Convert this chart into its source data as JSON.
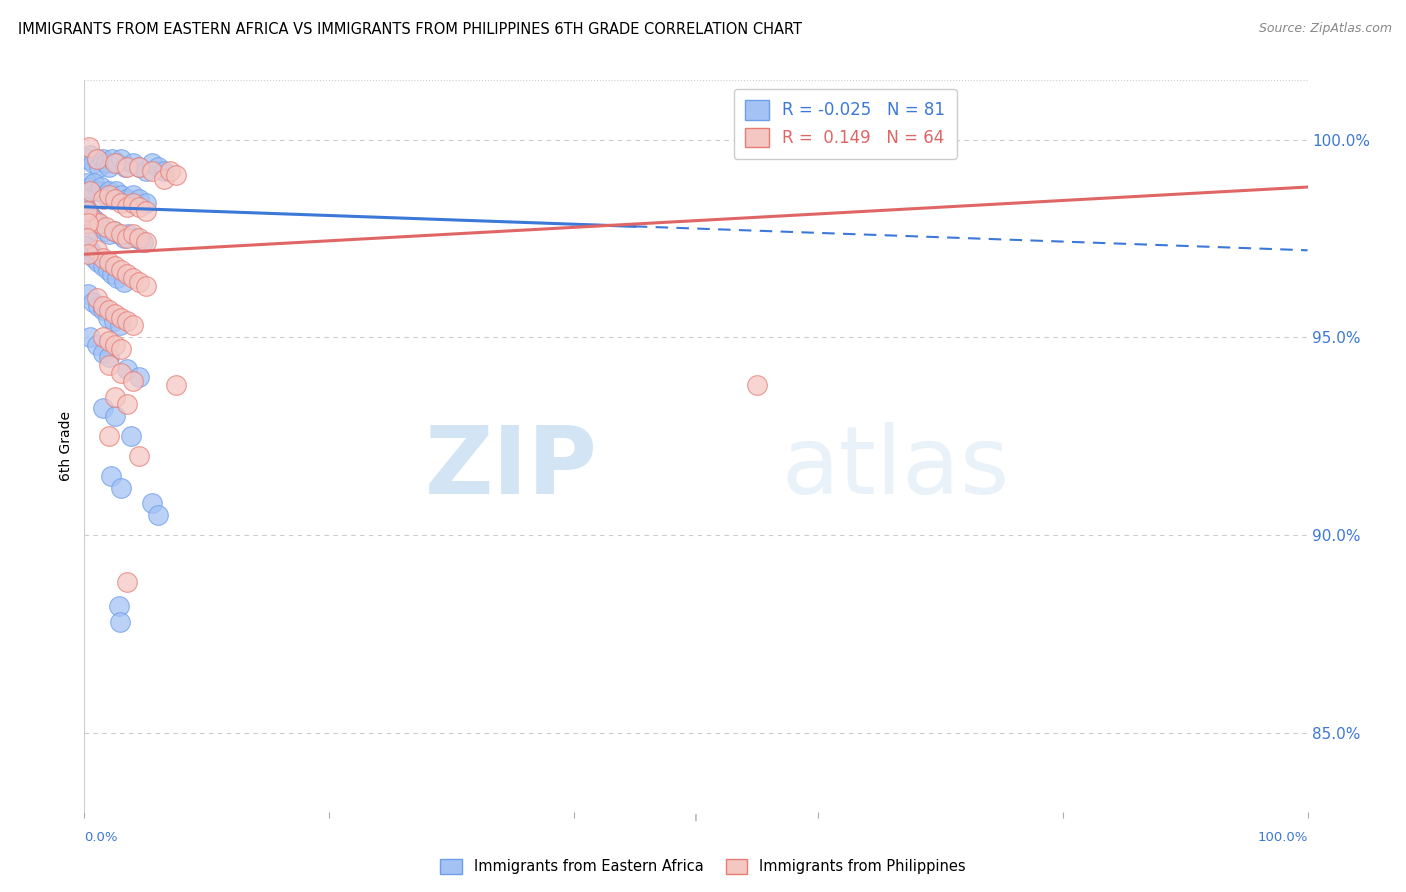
{
  "title": "IMMIGRANTS FROM EASTERN AFRICA VS IMMIGRANTS FROM PHILIPPINES 6TH GRADE CORRELATION CHART",
  "source": "Source: ZipAtlas.com",
  "ylabel": "6th Grade",
  "right_yticks": [
    100.0,
    95.0,
    90.0,
    85.0
  ],
  "xlim": [
    0,
    100
  ],
  "ylim": [
    83.0,
    101.5
  ],
  "watermark_zip": "ZIP",
  "watermark_atlas": "atlas",
  "legend_blue_r": "-0.025",
  "legend_blue_n": "81",
  "legend_pink_r": "0.149",
  "legend_pink_n": "64",
  "blue_color": "#a4c2f4",
  "pink_color": "#f4c7c3",
  "blue_edge_color": "#6d9eeb",
  "pink_edge_color": "#e67c73",
  "blue_line_color": "#3c78d8",
  "pink_line_color": "#e06666",
  "blue_line": [
    0,
    100,
    98.3,
    97.2
  ],
  "pink_line": [
    0,
    100,
    97.1,
    98.8
  ],
  "blue_dash_start_x": 45,
  "grid_color": "#cccccc",
  "bg_color": "#ffffff",
  "blue_scatter": [
    [
      0.3,
      99.5
    ],
    [
      0.5,
      99.6
    ],
    [
      0.7,
      99.4
    ],
    [
      1.0,
      99.5
    ],
    [
      1.2,
      99.3
    ],
    [
      1.5,
      99.5
    ],
    [
      1.8,
      99.4
    ],
    [
      2.0,
      99.3
    ],
    [
      2.3,
      99.5
    ],
    [
      2.7,
      99.4
    ],
    [
      3.0,
      99.5
    ],
    [
      3.3,
      99.3
    ],
    [
      4.0,
      99.4
    ],
    [
      4.5,
      99.3
    ],
    [
      5.0,
      99.2
    ],
    [
      5.5,
      99.4
    ],
    [
      6.0,
      99.3
    ],
    [
      6.5,
      99.2
    ],
    [
      0.2,
      98.9
    ],
    [
      0.5,
      98.8
    ],
    [
      0.8,
      98.9
    ],
    [
      1.1,
      98.7
    ],
    [
      1.4,
      98.8
    ],
    [
      1.7,
      98.6
    ],
    [
      2.0,
      98.7
    ],
    [
      2.3,
      98.5
    ],
    [
      2.6,
      98.7
    ],
    [
      3.0,
      98.6
    ],
    [
      3.5,
      98.5
    ],
    [
      4.0,
      98.6
    ],
    [
      4.5,
      98.5
    ],
    [
      5.0,
      98.4
    ],
    [
      0.1,
      98.3
    ],
    [
      0.3,
      98.2
    ],
    [
      0.5,
      98.1
    ],
    [
      0.8,
      98.0
    ],
    [
      1.1,
      97.9
    ],
    [
      1.4,
      97.8
    ],
    [
      1.7,
      97.7
    ],
    [
      2.0,
      97.6
    ],
    [
      2.4,
      97.7
    ],
    [
      2.8,
      97.6
    ],
    [
      3.2,
      97.5
    ],
    [
      3.6,
      97.6
    ],
    [
      4.2,
      97.5
    ],
    [
      4.8,
      97.4
    ],
    [
      0.2,
      97.3
    ],
    [
      0.5,
      97.2
    ],
    [
      0.8,
      97.0
    ],
    [
      1.1,
      96.9
    ],
    [
      1.5,
      96.8
    ],
    [
      1.9,
      96.7
    ],
    [
      2.3,
      96.6
    ],
    [
      2.7,
      96.5
    ],
    [
      3.2,
      96.4
    ],
    [
      0.3,
      96.1
    ],
    [
      0.7,
      95.9
    ],
    [
      1.1,
      95.8
    ],
    [
      1.5,
      95.7
    ],
    [
      1.9,
      95.5
    ],
    [
      2.4,
      95.4
    ],
    [
      2.9,
      95.3
    ],
    [
      0.5,
      95.0
    ],
    [
      1.0,
      94.8
    ],
    [
      1.5,
      94.6
    ],
    [
      2.0,
      94.5
    ],
    [
      3.5,
      94.2
    ],
    [
      4.5,
      94.0
    ],
    [
      1.5,
      93.2
    ],
    [
      2.5,
      93.0
    ],
    [
      3.8,
      92.5
    ],
    [
      2.2,
      91.5
    ],
    [
      3.0,
      91.2
    ],
    [
      5.5,
      90.8
    ],
    [
      6.0,
      90.5
    ],
    [
      2.8,
      88.2
    ],
    [
      2.9,
      87.8
    ],
    [
      0.05,
      98.5
    ],
    [
      0.08,
      98.3
    ],
    [
      0.06,
      98.1
    ],
    [
      0.07,
      97.9
    ],
    [
      0.04,
      97.5
    ],
    [
      0.05,
      97.3
    ]
  ],
  "pink_scatter": [
    [
      0.4,
      99.8
    ],
    [
      1.0,
      99.5
    ],
    [
      2.5,
      99.4
    ],
    [
      3.5,
      99.3
    ],
    [
      4.5,
      99.3
    ],
    [
      5.5,
      99.2
    ],
    [
      6.5,
      99.0
    ],
    [
      7.0,
      99.2
    ],
    [
      7.5,
      99.1
    ],
    [
      0.5,
      98.7
    ],
    [
      1.5,
      98.5
    ],
    [
      2.0,
      98.6
    ],
    [
      2.5,
      98.5
    ],
    [
      3.0,
      98.4
    ],
    [
      3.5,
      98.3
    ],
    [
      4.0,
      98.4
    ],
    [
      4.5,
      98.3
    ],
    [
      5.0,
      98.2
    ],
    [
      0.6,
      98.0
    ],
    [
      1.2,
      97.9
    ],
    [
      1.8,
      97.8
    ],
    [
      2.4,
      97.7
    ],
    [
      3.0,
      97.6
    ],
    [
      3.5,
      97.5
    ],
    [
      4.0,
      97.6
    ],
    [
      4.5,
      97.5
    ],
    [
      5.0,
      97.4
    ],
    [
      1.0,
      97.2
    ],
    [
      1.5,
      97.0
    ],
    [
      2.0,
      96.9
    ],
    [
      2.5,
      96.8
    ],
    [
      3.0,
      96.7
    ],
    [
      3.5,
      96.6
    ],
    [
      4.0,
      96.5
    ],
    [
      4.5,
      96.4
    ],
    [
      5.0,
      96.3
    ],
    [
      1.0,
      96.0
    ],
    [
      1.5,
      95.8
    ],
    [
      2.0,
      95.7
    ],
    [
      2.5,
      95.6
    ],
    [
      3.0,
      95.5
    ],
    [
      3.5,
      95.4
    ],
    [
      4.0,
      95.3
    ],
    [
      1.5,
      95.0
    ],
    [
      2.0,
      94.9
    ],
    [
      2.5,
      94.8
    ],
    [
      3.0,
      94.7
    ],
    [
      2.0,
      94.3
    ],
    [
      3.0,
      94.1
    ],
    [
      4.0,
      93.9
    ],
    [
      2.5,
      93.5
    ],
    [
      3.5,
      93.3
    ],
    [
      2.0,
      92.5
    ],
    [
      4.5,
      92.0
    ],
    [
      7.5,
      93.8
    ],
    [
      55.0,
      93.8
    ],
    [
      0.2,
      98.2
    ],
    [
      0.3,
      97.9
    ],
    [
      0.2,
      97.5
    ],
    [
      0.3,
      97.1
    ],
    [
      3.5,
      88.8
    ]
  ]
}
